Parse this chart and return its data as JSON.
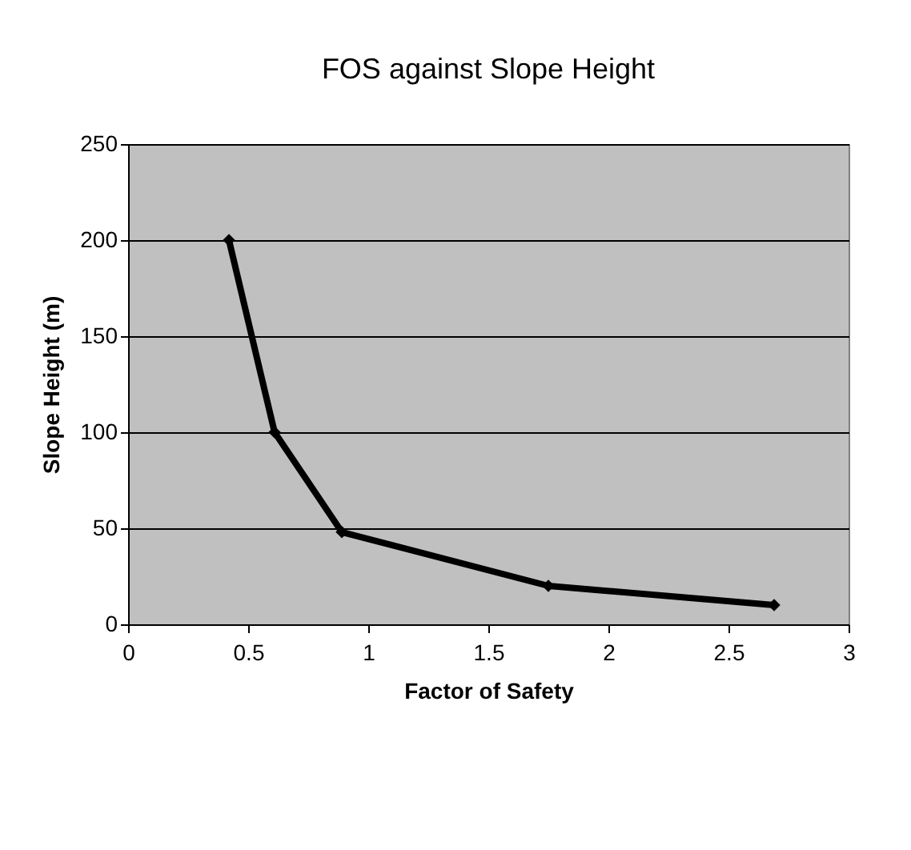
{
  "chart_data": {
    "type": "line",
    "title": "FOS against Slope Height",
    "xlabel": "Factor of Safety",
    "ylabel": "Slope Height (m)",
    "x": [
      0.42,
      0.61,
      0.89,
      1.75,
      2.69
    ],
    "series": [
      {
        "color": "#000000",
        "values": [
          200,
          100,
          48,
          20,
          10
        ]
      }
    ],
    "xlim": [
      0,
      3
    ],
    "xticks": [
      0,
      0.5,
      1,
      1.5,
      2,
      2.5,
      3
    ],
    "ylim": [
      0,
      250
    ],
    "yticks": [
      0,
      50,
      100,
      150,
      200,
      250
    ],
    "grid": "y",
    "marker": "diamond",
    "line_style": "solid",
    "legend": false
  }
}
